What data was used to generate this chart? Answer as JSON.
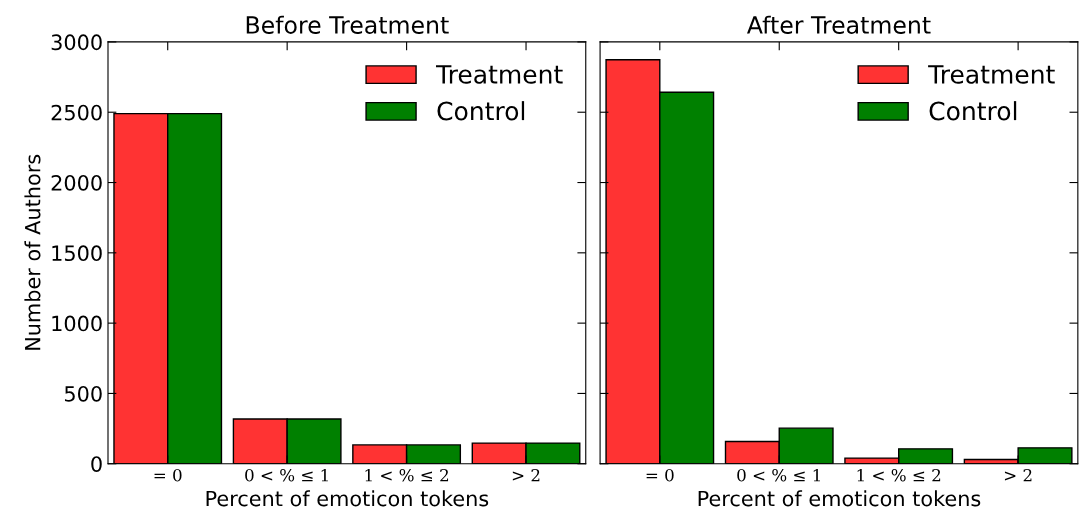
{
  "chart_data": [
    {
      "type": "bar",
      "title": "Before Treatment",
      "xlabel": "Percent of emoticon tokens",
      "ylabel": "Number of Authors",
      "categories": [
        "= 0",
        "0 < % ≤ 1",
        "1 < % ≤ 2",
        "> 2"
      ],
      "series": [
        {
          "name": "Treatment",
          "color": "#ff3333",
          "values": [
            2490,
            318,
            134,
            147
          ]
        },
        {
          "name": "Control",
          "color": "#008000",
          "values": [
            2490,
            318,
            134,
            147
          ]
        }
      ],
      "ylim": [
        0,
        3000
      ],
      "yticks": [
        0,
        500,
        1000,
        1500,
        2000,
        2500,
        3000
      ],
      "grid": false,
      "legend": "top right"
    },
    {
      "type": "bar",
      "title": "After Treatment",
      "xlabel": "Percent of emoticon tokens",
      "categories": [
        "= 0",
        "0 < % ≤ 1",
        "1 < % ≤ 2",
        "> 2"
      ],
      "series": [
        {
          "name": "Treatment",
          "color": "#ff3333",
          "values": [
            2873,
            158,
            40,
            30
          ]
        },
        {
          "name": "Control",
          "color": "#008000",
          "values": [
            2642,
            253,
            106,
            113
          ]
        }
      ],
      "ylim": [
        0,
        3000
      ],
      "yticks": [
        0,
        500,
        1000,
        1500,
        2000,
        2500,
        3000
      ],
      "tick_labels": "x",
      "grid": false,
      "legend": "top right"
    }
  ]
}
